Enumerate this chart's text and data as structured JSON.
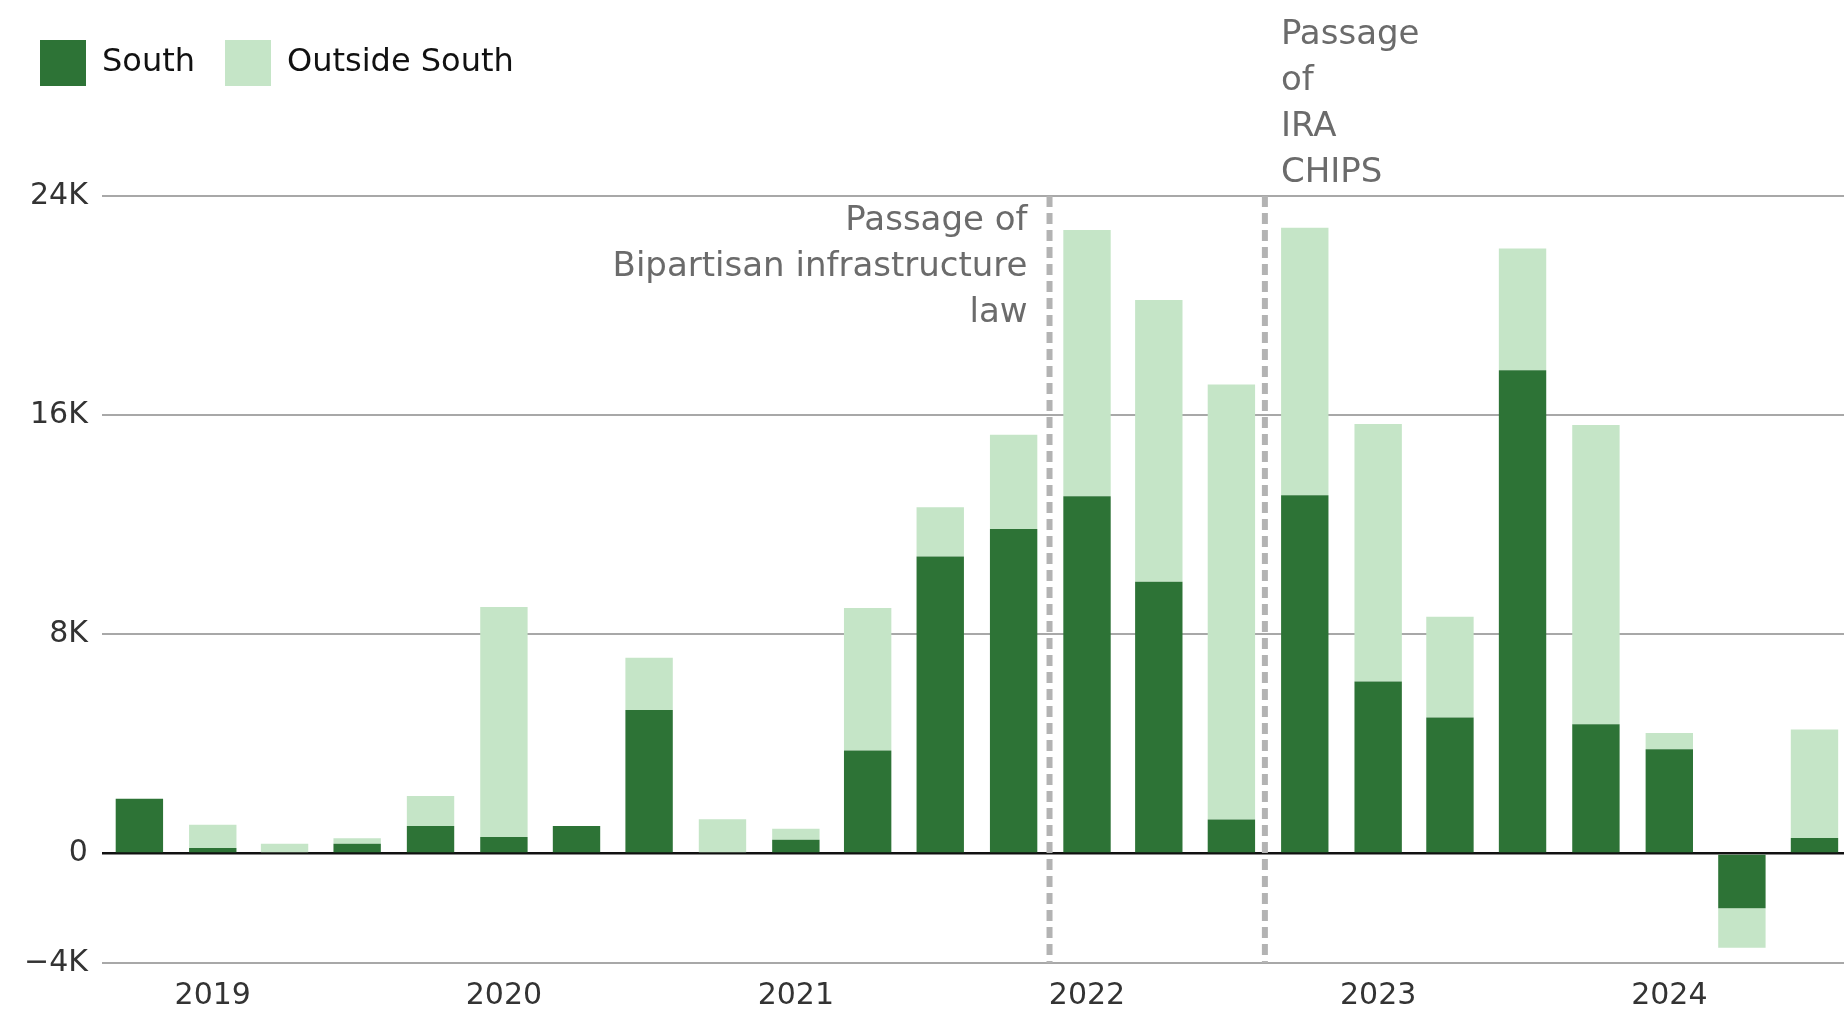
{
  "chart_data": {
    "type": "bar",
    "stacked": true,
    "x": [
      "2018-10",
      "2019-01",
      "2019-04",
      "2019-07",
      "2019-10",
      "2020-01",
      "2020-04",
      "2020-07",
      "2020-10",
      "2021-01",
      "2021-04",
      "2021-07",
      "2021-10",
      "2022-01",
      "2022-04",
      "2022-07",
      "2022-10",
      "2023-01",
      "2023-04",
      "2023-07",
      "2023-10",
      "2024-01",
      "2024-04",
      "2024-07"
    ],
    "series": [
      {
        "name": "South",
        "color": "#2d7336",
        "values": [
          2.0,
          0.2,
          0,
          0.35,
          1.0,
          0.6,
          1.0,
          5.24,
          0,
          0.5,
          3.76,
          10.84,
          11.84,
          13.04,
          9.92,
          1.24,
          13.08,
          6.28,
          4.96,
          17.64,
          4.72,
          3.8,
          -2.0,
          0.56
        ]
      },
      {
        "name": "Outside South",
        "color": "#c5e5c7",
        "values": [
          0,
          0.85,
          0.35,
          0.2,
          1.1,
          8.4,
          0,
          1.9,
          1.25,
          0.4,
          5.2,
          1.8,
          3.44,
          9.72,
          10.28,
          15.88,
          9.76,
          9.4,
          3.68,
          4.44,
          10.92,
          0.6,
          -1.44,
          3.96
        ]
      }
    ],
    "xlim": [
      "2018-08-15",
      "2024-08-07"
    ],
    "xticks": [
      {
        "value": "2019",
        "label": "2019"
      },
      {
        "value": "2020",
        "label": "2020"
      },
      {
        "value": "2021",
        "label": "2021"
      },
      {
        "value": "2022",
        "label": "2022"
      },
      {
        "value": "2023",
        "label": "2023"
      },
      {
        "value": "2024",
        "label": "2024"
      }
    ],
    "ylim": [
      -4,
      24
    ],
    "yticks": [
      {
        "value": -4,
        "label": "−4K"
      },
      {
        "value": 0,
        "label": "0"
      },
      {
        "value": 8,
        "label": "8K"
      },
      {
        "value": 16,
        "label": "16K"
      },
      {
        "value": 24,
        "label": "24K"
      }
    ],
    "grid": "y",
    "legend": "top left",
    "ref_lines": [
      {
        "axis": "x",
        "value": "2021-11-15",
        "label": "Passage of\nBipartisan infrastructure\nlaw",
        "color": "#b3b3b3",
        "line_style": "dashed"
      },
      {
        "axis": "x",
        "value": "2022-08-12",
        "label": "Passage\nof\nIRA\nCHIPS",
        "color": "#b3b3b3",
        "line_style": "dashed"
      }
    ]
  }
}
